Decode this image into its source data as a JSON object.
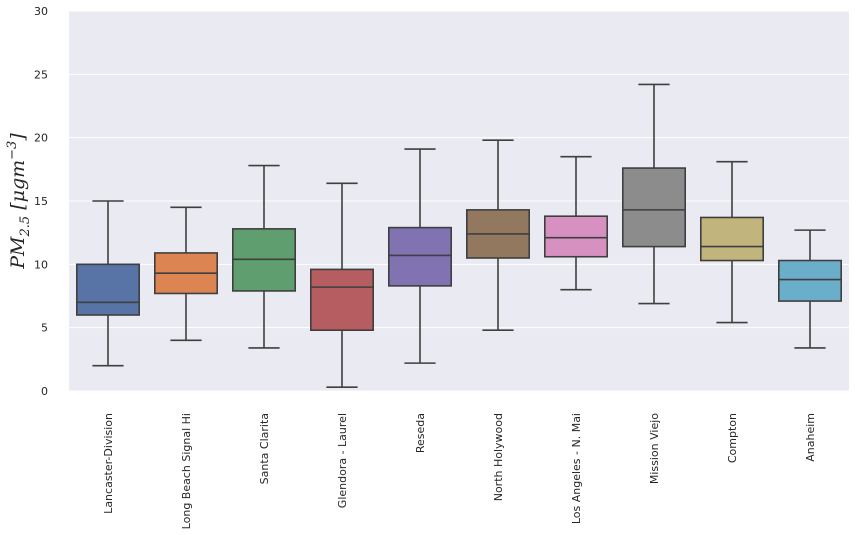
{
  "chart_data": {
    "type": "box",
    "title": "",
    "xlabel": "",
    "ylabel_parts": {
      "base": "PM",
      "sub": "2.5",
      "open": " [",
      "unit": "μgm",
      "sup": "−3",
      "close": "]"
    },
    "ylim": [
      0,
      30
    ],
    "yticks": [
      0,
      5,
      10,
      15,
      20,
      25,
      30
    ],
    "grid": true,
    "legend": "none",
    "categories": [
      "Lancaster-Division",
      "Long Beach Signal Hi",
      "Santa Clarita",
      "Glendora - Laurel",
      "Reseda",
      "North Holywood",
      "Los Angeles - N. Mai",
      "Mission Viejo",
      "Compton",
      "Anaheim"
    ],
    "boxes": [
      {
        "whisker_low": 2.0,
        "q1": 6.0,
        "median": 7.0,
        "q3": 10.0,
        "whisker_high": 15.0,
        "color": "#5874a6"
      },
      {
        "whisker_low": 4.0,
        "q1": 7.7,
        "median": 9.3,
        "q3": 10.9,
        "whisker_high": 14.5,
        "color": "#dd8453"
      },
      {
        "whisker_low": 3.4,
        "q1": 7.9,
        "median": 10.4,
        "q3": 12.8,
        "whisker_high": 17.8,
        "color": "#5f9e6e"
      },
      {
        "whisker_low": 0.3,
        "q1": 4.8,
        "median": 8.2,
        "q3": 9.6,
        "whisker_high": 16.4,
        "color": "#b55d60"
      },
      {
        "whisker_low": 2.2,
        "q1": 8.3,
        "median": 10.7,
        "q3": 12.9,
        "whisker_high": 19.1,
        "color": "#8172b2"
      },
      {
        "whisker_low": 4.8,
        "q1": 10.5,
        "median": 12.4,
        "q3": 14.3,
        "whisker_high": 19.8,
        "color": "#937860"
      },
      {
        "whisker_low": 8.0,
        "q1": 10.6,
        "median": 12.1,
        "q3": 13.8,
        "whisker_high": 18.5,
        "color": "#d691c1"
      },
      {
        "whisker_low": 6.9,
        "q1": 11.4,
        "median": 14.3,
        "q3": 17.6,
        "whisker_high": 24.2,
        "color": "#8c8c8c"
      },
      {
        "whisker_low": 5.4,
        "q1": 10.3,
        "median": 11.4,
        "q3": 13.7,
        "whisker_high": 18.1,
        "color": "#c2b47d"
      },
      {
        "whisker_low": 3.4,
        "q1": 7.1,
        "median": 8.8,
        "q3": 10.3,
        "whisker_high": 12.7,
        "color": "#6aaec9"
      }
    ],
    "colors": {
      "plot_background": "#eaeaf2",
      "grid": "#ffffff",
      "line": "#3f3f3f",
      "text": "#262626"
    }
  }
}
